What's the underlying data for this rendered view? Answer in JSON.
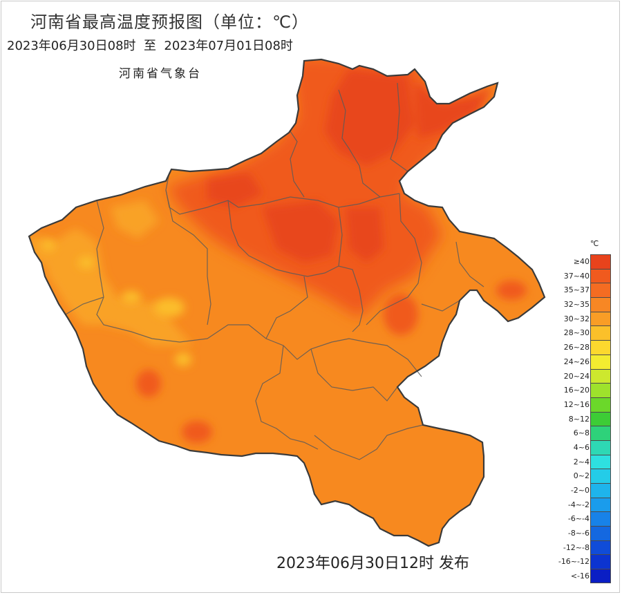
{
  "header": {
    "title": "河南省最高温度预报图（单位：℃）",
    "period": "2023年06月30日08时  至  2023年07月01日08时",
    "agency": "河南省气象台"
  },
  "footer": {
    "issued": "2023年06月30日12时 发布"
  },
  "legend": {
    "unit": "℃",
    "items": [
      {
        "label": "≥40",
        "color": "#e8431c"
      },
      {
        "label": "37~40",
        "color": "#f05a1e"
      },
      {
        "label": "35~37",
        "color": "#f46c22"
      },
      {
        "label": "32~35",
        "color": "#f78724"
      },
      {
        "label": "30~32",
        "color": "#f99d26"
      },
      {
        "label": "28~30",
        "color": "#fbc02a"
      },
      {
        "label": "26~28",
        "color": "#fcd82e"
      },
      {
        "label": "24~26",
        "color": "#f3ec30"
      },
      {
        "label": "20~24",
        "color": "#cde82e"
      },
      {
        "label": "16~20",
        "color": "#9ee22c"
      },
      {
        "label": "12~16",
        "color": "#6bd82a"
      },
      {
        "label": "8~12",
        "color": "#3dcc36"
      },
      {
        "label": "6~8",
        "color": "#2ed27a"
      },
      {
        "label": "4~6",
        "color": "#2ed8b4"
      },
      {
        "label": "2~4",
        "color": "#2ee0e0"
      },
      {
        "label": "0~2",
        "color": "#24cce8"
      },
      {
        "label": "-2~0",
        "color": "#1eb4ec"
      },
      {
        "label": "-4~-2",
        "color": "#1a9cec"
      },
      {
        "label": "-6~-4",
        "color": "#1882e8"
      },
      {
        "label": "-8~-6",
        "color": "#1468e0"
      },
      {
        "label": "-12~-8",
        "color": "#104cd8"
      },
      {
        "label": "-16~-12",
        "color": "#0c34d0"
      },
      {
        "label": "<-16",
        "color": "#0a1ec4"
      }
    ]
  },
  "map": {
    "base_color": "#f7891f",
    "hot_color": "#f05a1e",
    "hottest_color": "#e8461c",
    "warm_color": "#f9a226",
    "cool_color": "#fbbd2a",
    "border_color": "#3a3a3a",
    "district_border_color": "#5a5a5a"
  }
}
